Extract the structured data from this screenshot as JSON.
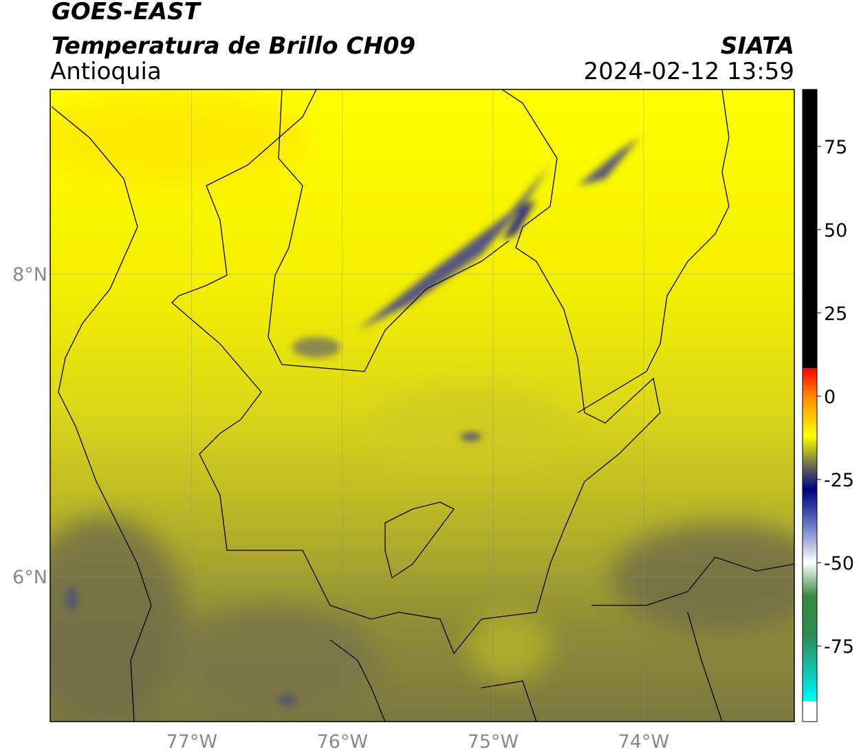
{
  "header": {
    "line1": "GOES-EAST",
    "line2": "Temperatura de Brillo CH09",
    "line3": "Antioquia",
    "source": "SIATA",
    "datetime": "2024-02-12 13:59"
  },
  "map": {
    "xlim": [
      -77.94,
      -73.0
    ],
    "ylim": [
      5.04,
      9.22
    ],
    "xticks": [
      {
        "value": -77,
        "label": "77°W"
      },
      {
        "value": -76,
        "label": "76°W"
      },
      {
        "value": -75,
        "label": "75°W"
      },
      {
        "value": -74,
        "label": "74°W"
      }
    ],
    "yticks": [
      {
        "value": 6,
        "label": "6°N"
      },
      {
        "value": 8,
        "label": "8°N"
      }
    ],
    "grid": true
  },
  "colorbar": {
    "lim": [
      -97.7,
      92.1
    ],
    "ticks": [
      75,
      50,
      25,
      0,
      -25,
      -50,
      -75
    ],
    "colormap": [
      {
        "value": 92.1,
        "color": "#000000"
      },
      {
        "value": 8.5,
        "color": "#000000"
      },
      {
        "value": 8.4,
        "color": "#ff0000"
      },
      {
        "value": 0,
        "color": "#ff8c00"
      },
      {
        "value": -12,
        "color": "#ffff00"
      },
      {
        "value": -19,
        "color": "#8a8a3a"
      },
      {
        "value": -23,
        "color": "#4a4a6a"
      },
      {
        "value": -28,
        "color": "#000080"
      },
      {
        "value": -38,
        "color": "#6070c0"
      },
      {
        "value": -50,
        "color": "#ffffff"
      },
      {
        "value": -60,
        "color": "#3a8a3a"
      },
      {
        "value": -72,
        "color": "#2e8b57"
      },
      {
        "value": -88,
        "color": "#00e5e0"
      },
      {
        "value": -91.5,
        "color": "#00ffee"
      },
      {
        "value": -91.6,
        "color": "#ffffff"
      },
      {
        "value": -97.7,
        "color": "#ffffff"
      }
    ]
  }
}
